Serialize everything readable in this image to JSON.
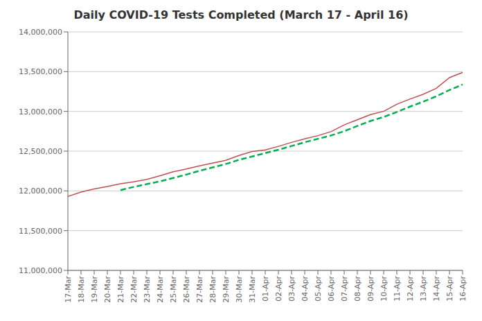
{
  "chart_data": {
    "type": "line",
    "title": "Daily COVID-19 Tests Completed (March 17 - April 16)",
    "categories": [
      "17-Mar",
      "18-Mar",
      "19-Mar",
      "20-Mar",
      "21-Mar",
      "22-Mar",
      "23-Mar",
      "24-Mar",
      "25-Mar",
      "26-Mar",
      "27-Mar",
      "28-Mar",
      "29-Mar",
      "30-Mar",
      "31-Mar",
      "01-Apr",
      "02-Apr",
      "03-Apr",
      "04-Apr",
      "05-Apr",
      "06-Apr",
      "07-Apr",
      "08-Apr",
      "09-Apr",
      "10-Apr",
      "11-Apr",
      "12-Apr",
      "13-Apr",
      "14-Apr",
      "15-Apr",
      "16-Apr"
    ],
    "series": [
      {
        "color": "#c0504d",
        "line_style": "solid",
        "values": [
          11930000,
          11985000,
          12025000,
          12055000,
          12090000,
          12115000,
          12145000,
          12190000,
          12240000,
          12275000,
          12315000,
          12350000,
          12385000,
          12445000,
          12495000,
          12515000,
          12560000,
          12610000,
          12655000,
          12695000,
          12745000,
          12830000,
          12895000,
          12960000,
          13000000,
          13090000,
          13155000,
          13215000,
          13290000,
          13425000,
          13490000
        ]
      },
      {
        "color": "#00b050",
        "line_style": "dashed",
        "values": [
          null,
          null,
          null,
          null,
          12010000,
          12050000,
          12085000,
          12120000,
          12162000,
          12205000,
          12253000,
          12295000,
          12338000,
          12390000,
          12432000,
          12476000,
          12518000,
          12564000,
          12612000,
          12655000,
          12697000,
          12751000,
          12817000,
          12879000,
          12930000,
          12992000,
          13060000,
          13122000,
          13190000,
          13268000,
          13338000
        ]
      }
    ],
    "ylim": [
      11000000,
      14000000
    ],
    "yticks": [
      {
        "value": 11000000,
        "label": "11,000,000"
      },
      {
        "value": 11500000,
        "label": "11,500,000"
      },
      {
        "value": 12000000,
        "label": "12,000,000"
      },
      {
        "value": 12500000,
        "label": "12,500,000"
      },
      {
        "value": 13000000,
        "label": "13,000,000"
      },
      {
        "value": 13500000,
        "label": "13,500,000"
      },
      {
        "value": 14000000,
        "label": "14,000,000"
      }
    ],
    "grid": true
  }
}
